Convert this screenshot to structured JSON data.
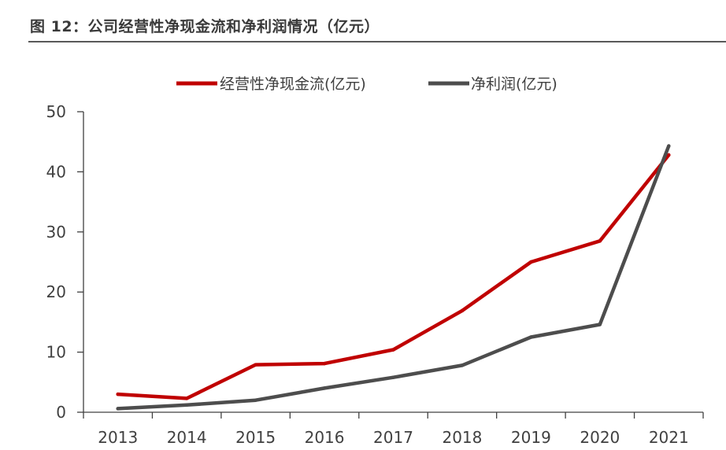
{
  "figure": {
    "title": "图 12：公司经营性净现金流和净利润情况（亿元）"
  },
  "colors": {
    "series_cash_flow": "#c00000",
    "series_net_profit": "#4d4d4d",
    "axis": "#404040",
    "title_rule": "#595959"
  },
  "chart_data": {
    "type": "line",
    "title": "",
    "xlabel": "",
    "ylabel": "",
    "categories": [
      "2013",
      "2014",
      "2015",
      "2016",
      "2017",
      "2018",
      "2019",
      "2020",
      "2021"
    ],
    "ylim": [
      0,
      50
    ],
    "yticks": [
      "0",
      "10",
      "20",
      "30",
      "40",
      "50"
    ],
    "grid": false,
    "legend_position": "top",
    "series": [
      {
        "name": "经营性净现金流(亿元)",
        "color": "#c00000",
        "values": [
          3.0,
          2.3,
          7.9,
          8.1,
          10.4,
          16.9,
          25.0,
          28.5,
          42.8
        ]
      },
      {
        "name": "净利润(亿元)",
        "color": "#4d4d4d",
        "values": [
          0.6,
          1.2,
          2.0,
          4.0,
          5.8,
          7.8,
          12.5,
          14.6,
          44.3
        ]
      }
    ]
  }
}
